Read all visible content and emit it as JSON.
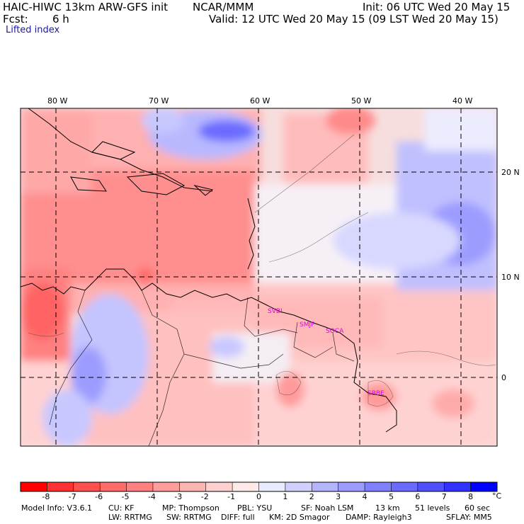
{
  "header": {
    "model_title": "HAIC-HIWC 13km ARW-GFS init",
    "org": "NCAR/MMM",
    "init": "Init: 06 UTC Wed 20 May 15",
    "fcst_label": "Fcst:",
    "fcst_value": "6 h",
    "valid": "Valid: 12 UTC Wed 20 May 15 (09 LST Wed 20 May 15)",
    "field": "Lifted index"
  },
  "map": {
    "lon_labels": [
      "80 W",
      "70 W",
      "60 W",
      "50 W",
      "40 W"
    ],
    "lat_labels": [
      "20 N",
      "10 N",
      "0"
    ],
    "stations": [
      "SVBI",
      "SMJP",
      "SOCA",
      "SBBE"
    ]
  },
  "colorbar": {
    "labels": [
      "-8",
      "-7",
      "-6",
      "-5",
      "-4",
      "-3",
      "-2",
      "-1",
      "0",
      "1",
      "2",
      "3",
      "4",
      "5",
      "6",
      "7",
      "8"
    ],
    "unit": "°C",
    "colors": [
      "#ff0000",
      "#ff3333",
      "#ff5050",
      "#ff6a6a",
      "#ff8080",
      "#ff9c9c",
      "#ffb4b4",
      "#ffd0d0",
      "#ffeaea",
      "#eaeaff",
      "#d0d0ff",
      "#b4b4ff",
      "#9c9cff",
      "#8080ff",
      "#6a6aff",
      "#5050ff",
      "#3333ff",
      "#0000ff"
    ]
  },
  "footer": {
    "line1": [
      "Model Info: V3.6.1",
      "CU: KF",
      "MP: Thompson",
      "PBL: YSU",
      "SF: Noah LSM",
      "13 km",
      "51 levels",
      "60 sec"
    ],
    "line2": [
      "LW: RRTMG",
      "SW: RRTMG",
      "DIFF: full",
      "KM: 2D Smagor",
      "DAMP: Rayleigh3",
      "SFLAY: MM5"
    ]
  }
}
